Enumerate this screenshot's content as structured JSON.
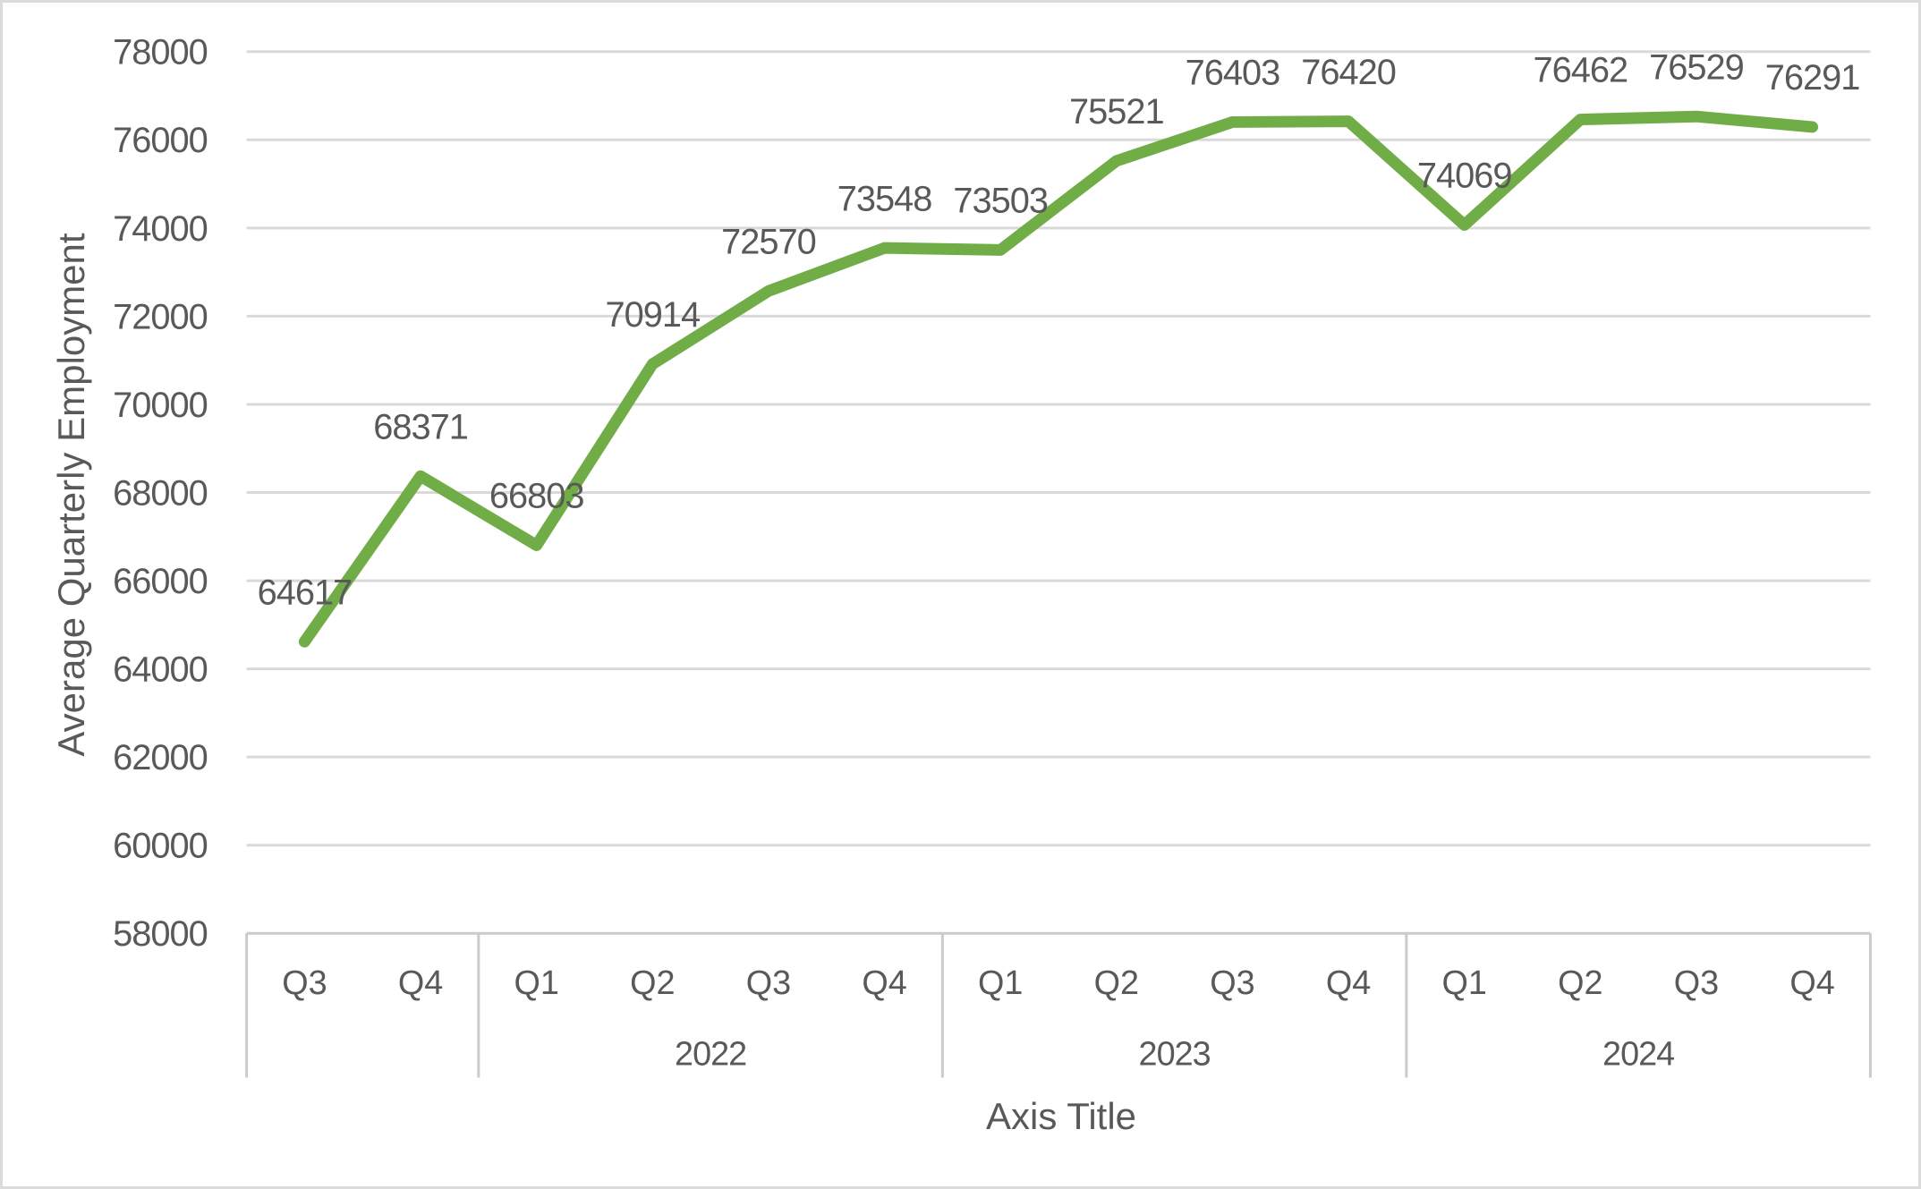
{
  "chart_data": {
    "type": "line",
    "title": "",
    "xlabel": "Axis Title",
    "ylabel": "Average Quarterly Employment",
    "categories": [
      "Q3",
      "Q4",
      "Q1",
      "Q2",
      "Q3",
      "Q4",
      "Q1",
      "Q2",
      "Q3",
      "Q4",
      "Q1",
      "Q2",
      "Q3",
      "Q4"
    ],
    "category_groups": [
      {
        "year": "",
        "quarters": [
          "Q3",
          "Q4"
        ]
      },
      {
        "year": "2022",
        "quarters": [
          "Q1",
          "Q2",
          "Q3",
          "Q4"
        ]
      },
      {
        "year": "2023",
        "quarters": [
          "Q1",
          "Q2",
          "Q3",
          "Q4"
        ]
      },
      {
        "year": "2024",
        "quarters": [
          "Q1",
          "Q2",
          "Q3",
          "Q4"
        ]
      }
    ],
    "series": [
      {
        "name": "Average Quarterly Employment",
        "values": [
          64617,
          68371,
          66803,
          70914,
          72570,
          73548,
          73503,
          75521,
          76403,
          76420,
          74069,
          76462,
          76529,
          76291
        ],
        "color": "#70AD47"
      }
    ],
    "data_labels": [
      "64617",
      "68371",
      "66803",
      "70914",
      "72570",
      "73548",
      "73503",
      "75521",
      "76403",
      "76420",
      "74069",
      "76462",
      "76529",
      "76291"
    ],
    "ylim": [
      58000,
      78000
    ],
    "ytick_interval": 2000,
    "yticks": [
      "78000",
      "76000",
      "74000",
      "72000",
      "70000",
      "68000",
      "66000",
      "64000",
      "62000",
      "60000",
      "58000"
    ],
    "grid": true,
    "legend": "none",
    "colors": {
      "line": "#70AD47",
      "gridline": "#D9D9D9",
      "axis_line": "#CBCBCB",
      "text": "#595959"
    }
  }
}
